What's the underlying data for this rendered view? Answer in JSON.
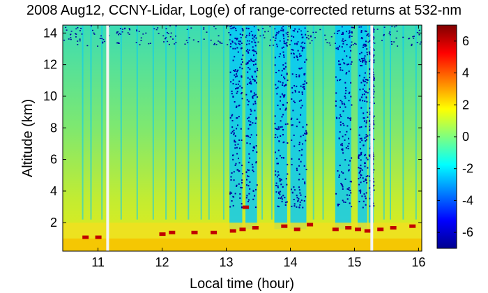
{
  "chart_data": {
    "type": "heatmap",
    "title": "2008 Aug12, CCNY-Lidar, Log(e) of range-corrected returns at 532-nm",
    "xlabel": "Local time (hour)",
    "ylabel": "Altitude (km)",
    "xlim": [
      10.45,
      16.05
    ],
    "ylim": [
      0.2,
      14.5
    ],
    "x_ticks": [
      "11",
      "12",
      "13",
      "14",
      "15",
      "16"
    ],
    "y_ticks": [
      "2",
      "4",
      "6",
      "8",
      "10",
      "12",
      "14"
    ],
    "colorbar": {
      "range": [
        -7,
        7
      ],
      "ticks": [
        "6",
        "4",
        "2",
        "0",
        "-2",
        "-4",
        "-6"
      ],
      "colormap": "jet"
    },
    "data_gaps_hour": [
      11.15,
      15.27
    ],
    "cloud_base_km": [
      {
        "t": 10.8,
        "h": 1.1
      },
      {
        "t": 11.0,
        "h": 1.1
      },
      {
        "t": 12.0,
        "h": 1.3
      },
      {
        "t": 12.15,
        "h": 1.4
      },
      {
        "t": 12.5,
        "h": 1.4
      },
      {
        "t": 12.8,
        "h": 1.4
      },
      {
        "t": 13.1,
        "h": 1.5
      },
      {
        "t": 13.25,
        "h": 1.6
      },
      {
        "t": 13.3,
        "h": 3.0
      },
      {
        "t": 13.45,
        "h": 1.7
      },
      {
        "t": 13.9,
        "h": 1.8
      },
      {
        "t": 14.1,
        "h": 1.6
      },
      {
        "t": 14.3,
        "h": 1.9
      },
      {
        "t": 14.7,
        "h": 1.6
      },
      {
        "t": 14.9,
        "h": 1.7
      },
      {
        "t": 15.05,
        "h": 1.6
      },
      {
        "t": 15.2,
        "h": 1.5
      },
      {
        "t": 15.4,
        "h": 1.6
      },
      {
        "t": 15.6,
        "h": 1.7
      },
      {
        "t": 15.9,
        "h": 1.8
      }
    ],
    "colors": {
      "background_field": "#5fe890",
      "boundary_layer": "#f0e020",
      "clear_band": "#00c8ff",
      "noise": "#0000a0",
      "cloud": "#c00000"
    }
  }
}
